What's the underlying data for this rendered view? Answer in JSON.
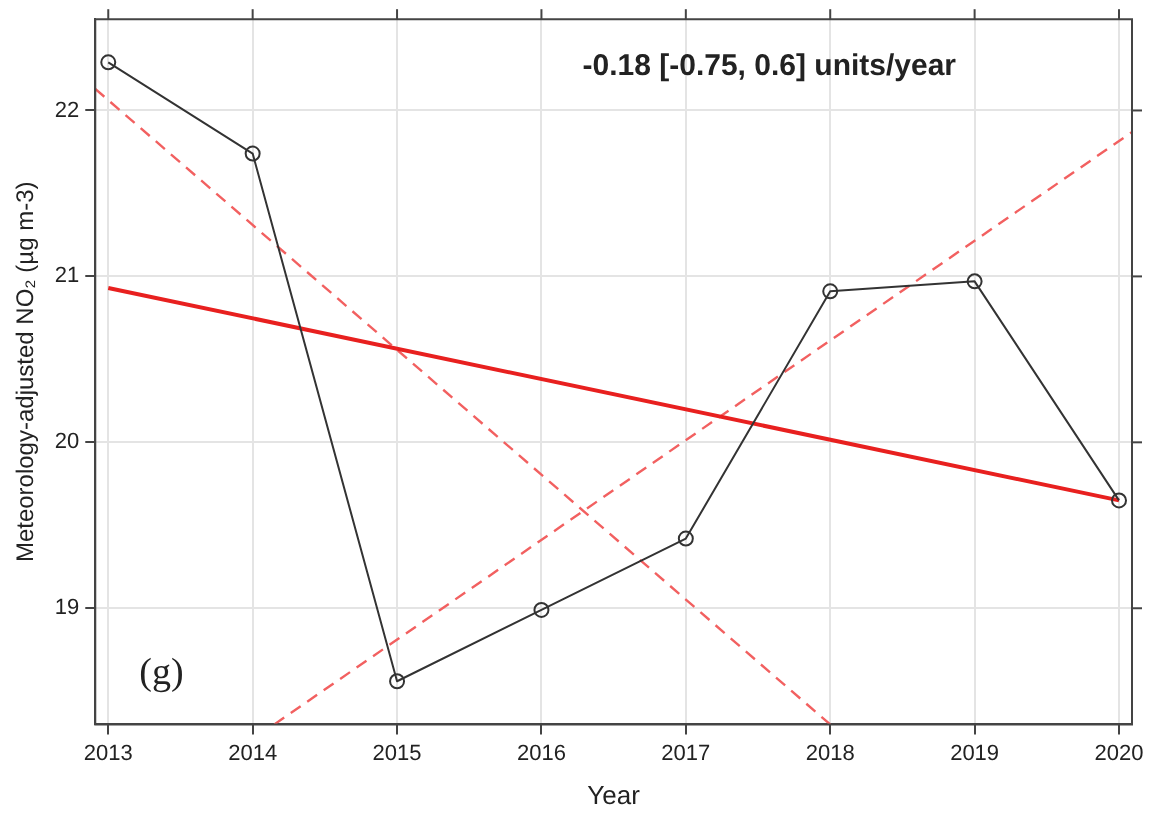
{
  "chart_data": {
    "type": "line",
    "xlabel": "Year",
    "ylabel": "Meteorology-adjusted NO₂ (µg m-3)",
    "x": [
      2013,
      2014,
      2015,
      2016,
      2017,
      2018,
      2019,
      2020
    ],
    "series": [
      {
        "color": "#333333",
        "marker": "circle",
        "line_style": "solid",
        "values": [
          22.29,
          21.74,
          18.56,
          18.99,
          19.42,
          20.91,
          20.97,
          19.65
        ]
      },
      {
        "type": "line",
        "color": "#e8201f",
        "marker": "none",
        "line_style": "solid",
        "x": [
          2013,
          2020
        ],
        "values": [
          20.93,
          19.65
        ]
      },
      {
        "type": "line",
        "color": "#f26060",
        "marker": "none",
        "line_style": "dashed",
        "x": [
          2012.91,
          2018
        ],
        "values": [
          22.13,
          18.3
        ]
      },
      {
        "type": "line",
        "color": "#f26060",
        "marker": "none",
        "line_style": "dashed",
        "x": [
          2014.15,
          2020.09
        ],
        "values": [
          18.3,
          21.87
        ]
      }
    ],
    "xlim": [
      2012.91,
      2020.09
    ],
    "ylim": [
      18.3,
      22.55
    ],
    "xticks": [
      2013,
      2014,
      2015,
      2016,
      2017,
      2018,
      2019,
      2020
    ],
    "yticks": [
      19,
      20,
      21,
      22
    ],
    "grid": true,
    "legend": false,
    "annotations": [
      "-0.18 [-0.75, 0.6] units/year",
      "(g)"
    ]
  }
}
